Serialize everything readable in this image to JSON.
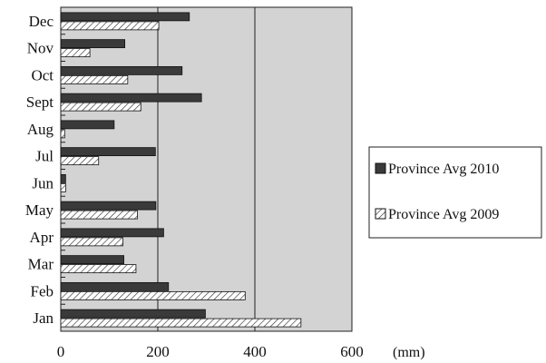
{
  "chart_data": {
    "type": "bar",
    "orientation": "horizontal",
    "categories": [
      "Jan",
      "Feb",
      "Mar",
      "Apr",
      "May",
      "Jun",
      "Jul",
      "Aug",
      "Sept",
      "Oct",
      "Nov",
      "Dec"
    ],
    "series": [
      {
        "name": "Province Avg 2010",
        "pattern": "solid",
        "color": "#3a3a3a",
        "values": [
          298,
          222,
          130,
          212,
          196,
          10,
          195,
          110,
          290,
          250,
          132,
          265
        ]
      },
      {
        "name": "Province Avg 2009",
        "pattern": "hatched",
        "color": "#ffffff",
        "values": [
          495,
          380,
          155,
          128,
          158,
          10,
          78,
          8,
          165,
          138,
          60,
          202
        ]
      }
    ],
    "xlim": [
      0,
      600
    ],
    "xticks": [
      0,
      200,
      400,
      600
    ],
    "x_unit_label": "(mm)",
    "grid": "vertical",
    "plot_background": "#d3d3d3",
    "legend_position": "right"
  }
}
